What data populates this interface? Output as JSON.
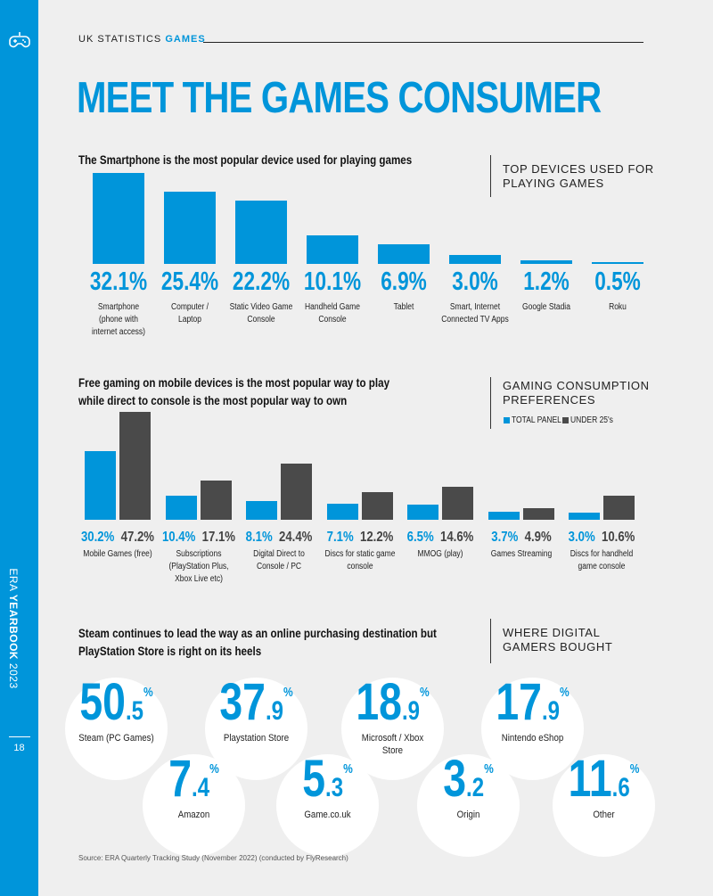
{
  "colors": {
    "accent": "#0095da",
    "dark_series": "#4a4a4a",
    "background": "#efefef"
  },
  "sidebar": {
    "icon": "gamepad-icon",
    "publication_prefix": "ERA",
    "publication_bold": "YEARBOOK",
    "publication_year": "2023",
    "page_number": "18"
  },
  "header": {
    "section_label": "UK STATISTICS",
    "section_accent": "GAMES",
    "title": "MEET THE GAMES CONSUMER"
  },
  "section1": {
    "lede": "The Smartphone is the most popular device used for playing games",
    "heading_line1": "TOP DEVICES USED FOR",
    "heading_line2": "PLAYING GAMES"
  },
  "section2": {
    "lede_line1": "Free gaming on mobile devices is the most popular way to play",
    "lede_line2": "while direct to console is the most popular way to own",
    "heading_line1": "GAMING CONSUMPTION",
    "heading_line2": "PREFERENCES",
    "legend_total": "TOTAL PANEL",
    "legend_under25": "UNDER 25's"
  },
  "section3": {
    "lede_line1": "Steam continues to lead the way as an online purchasing destination but",
    "lede_line2": "PlayStation Store is right on its heels",
    "heading_line1": "WHERE DIGITAL",
    "heading_line2": "GAMERS BOUGHT"
  },
  "chart_data": [
    {
      "type": "bar",
      "title": "TOP DEVICES USED FOR PLAYING GAMES",
      "categories": [
        "Smartphone (phone with internet access)",
        "Computer / Laptop",
        "Static Video Game Console",
        "Handheld Game Console",
        "Tablet",
        "Smart, Internet Connected TV Apps",
        "Google Stadia",
        "Roku"
      ],
      "category_lines": [
        [
          "Smartphone",
          "(phone with",
          "internet access)"
        ],
        [
          "Computer /",
          "Laptop"
        ],
        [
          "Static Video Game",
          "Console"
        ],
        [
          "Handheld Game",
          "Console"
        ],
        [
          "Tablet"
        ],
        [
          "Smart, Internet",
          "Connected TV Apps"
        ],
        [
          "Google Stadia"
        ],
        [
          "Roku"
        ]
      ],
      "values": [
        32.1,
        25.4,
        22.2,
        10.1,
        6.9,
        3.0,
        1.2,
        0.5
      ],
      "value_labels": [
        "32.1%",
        "25.4%",
        "22.2%",
        "10.1%",
        "6.9%",
        "3.0%",
        "1.2%",
        "0.5%"
      ],
      "unit": "%",
      "ylim": [
        0,
        32.1
      ]
    },
    {
      "type": "bar",
      "title": "GAMING CONSUMPTION PREFERENCES",
      "categories": [
        "Mobile Games (free)",
        "Subscriptions (PlayStation Plus, Xbox Live etc)",
        "Digital Direct to Console / PC",
        "Discs for static game console",
        "MMOG (play)",
        "Games Streaming",
        "Discs for handheld game console"
      ],
      "category_lines": [
        [
          "Mobile Games (free)"
        ],
        [
          "Subscriptions",
          "(PlayStation Plus,",
          "Xbox Live etc)"
        ],
        [
          "Digital Direct to",
          "Console / PC"
        ],
        [
          "Discs for static game",
          "console"
        ],
        [
          "MMOG (play)"
        ],
        [
          "Games Streaming"
        ],
        [
          "Discs for handheld",
          "game console"
        ]
      ],
      "series": [
        {
          "name": "TOTAL PANEL",
          "values": [
            30.2,
            10.4,
            8.1,
            7.1,
            6.5,
            3.7,
            3.0
          ],
          "labels": [
            "30.2%",
            "10.4%",
            "8.1%",
            "7.1%",
            "6.5%",
            "3.7%",
            "3.0%"
          ]
        },
        {
          "name": "UNDER 25's",
          "values": [
            47.2,
            17.1,
            24.4,
            12.2,
            14.6,
            4.9,
            10.6
          ],
          "labels": [
            "47.2%",
            "17.1%",
            "24.4%",
            "12.2%",
            "14.6%",
            "4.9%",
            "10.6%"
          ]
        }
      ],
      "unit": "%",
      "ylim": [
        0,
        47.2
      ]
    },
    {
      "type": "table",
      "title": "WHERE DIGITAL GAMERS BOUGHT",
      "stores": [
        {
          "integer": "50",
          "decimal": ".5",
          "pct": "%",
          "value": 50.5,
          "name_lines": [
            "Steam (PC Games)"
          ]
        },
        {
          "integer": "37",
          "decimal": ".9",
          "pct": "%",
          "value": 37.9,
          "name_lines": [
            "Playstation Store"
          ]
        },
        {
          "integer": "18",
          "decimal": ".9",
          "pct": "%",
          "value": 18.9,
          "name_lines": [
            "Microsoft / Xbox",
            "Store"
          ]
        },
        {
          "integer": "17",
          "decimal": ".9",
          "pct": "%",
          "value": 17.9,
          "name_lines": [
            "Nintendo eShop"
          ]
        },
        {
          "integer": "7",
          "decimal": ".4",
          "pct": "%",
          "value": 7.4,
          "name_lines": [
            "Amazon"
          ]
        },
        {
          "integer": "5",
          "decimal": ".3",
          "pct": "%",
          "value": 5.3,
          "name_lines": [
            "Game.co.uk"
          ]
        },
        {
          "integer": "3",
          "decimal": ".2",
          "pct": "%",
          "value": 3.2,
          "name_lines": [
            "Origin"
          ]
        },
        {
          "integer": "11",
          "decimal": ".6",
          "pct": "%",
          "value": 11.6,
          "name_lines": [
            "Other"
          ]
        }
      ]
    }
  ],
  "footer": {
    "source": "Source: ERA Quarterly Tracking Study  (November 2022) (conducted by FlyResearch)"
  }
}
